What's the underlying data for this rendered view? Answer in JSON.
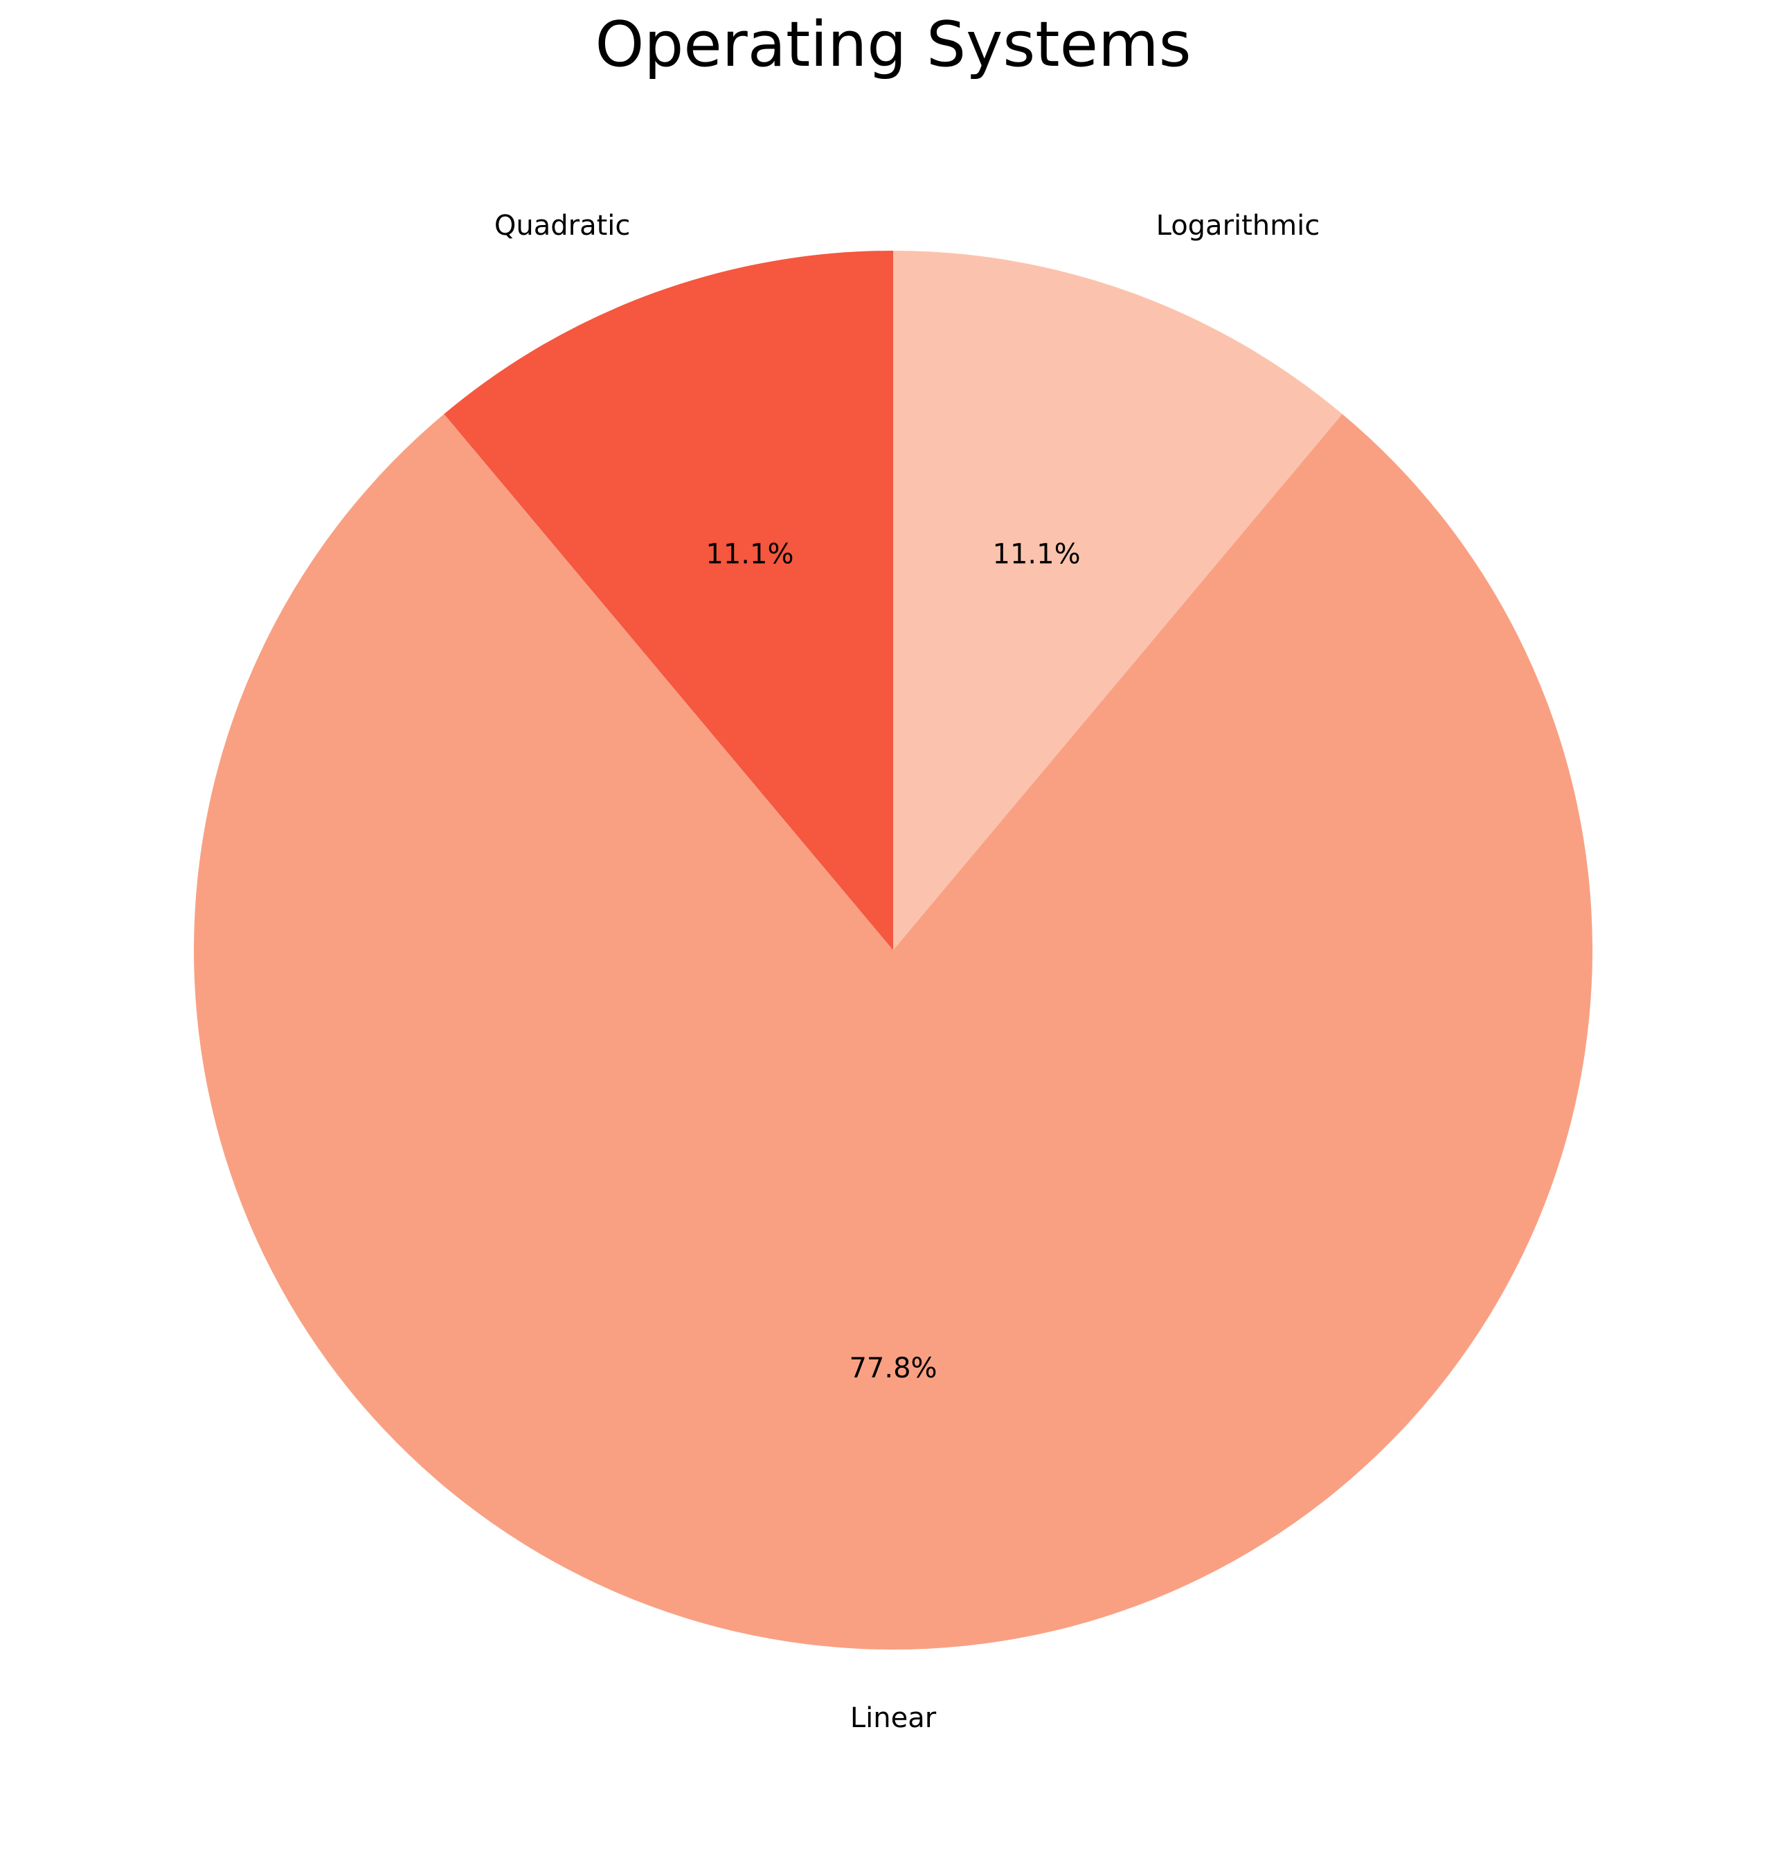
{
  "chart_data": {
    "type": "pie",
    "title": "Operating Systems",
    "categories": [
      "Logarithmic",
      "Linear",
      "Quadratic"
    ],
    "values": [
      11.1,
      77.8,
      11.1
    ],
    "value_labels": [
      "11.1%",
      "77.8%",
      "11.1%"
    ],
    "colors": [
      "#fbc3ad",
      "#f9a083",
      "#f5573f"
    ],
    "start_angle_deg": 90,
    "direction": "clockwise",
    "legend": "none"
  }
}
